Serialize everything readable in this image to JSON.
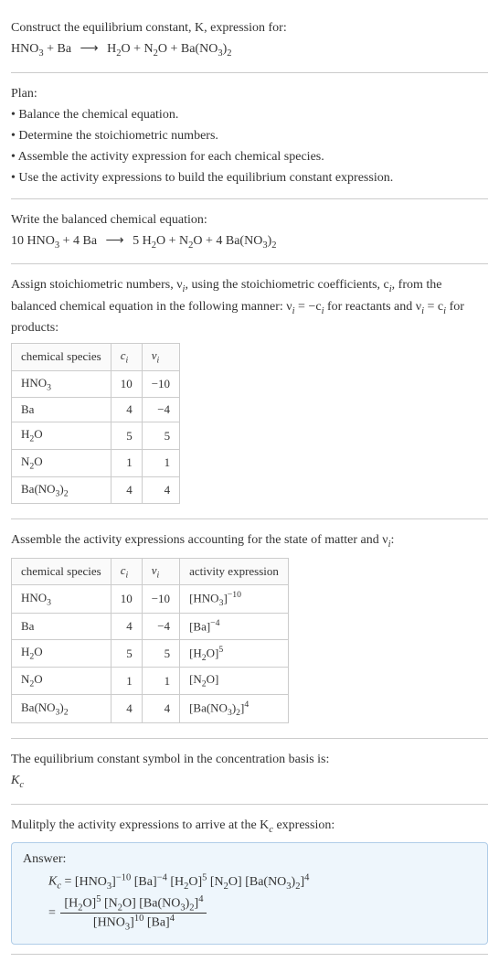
{
  "header": {
    "line1": "Construct the equilibrium constant, K, expression for:",
    "eq_lhs": "HNO₃ + Ba",
    "eq_rhs": "H₂O + N₂O + Ba(NO₃)₂"
  },
  "plan": {
    "title": "Plan:",
    "items": [
      "• Balance the chemical equation.",
      "• Determine the stoichiometric numbers.",
      "• Assemble the activity expression for each chemical species.",
      "• Use the activity expressions to build the equilibrium constant expression."
    ]
  },
  "balanced": {
    "title": "Write the balanced chemical equation:",
    "eq_lhs": "10 HNO₃ + 4 Ba",
    "eq_rhs": "5 H₂O + N₂O + 4 Ba(NO₃)₂"
  },
  "stoich": {
    "intro_a": "Assign stoichiometric numbers, ν",
    "intro_b": ", using the stoichiometric coefficients, c",
    "intro_c": ", from the balanced chemical equation in the following manner: ν",
    "intro_d": " = −c",
    "intro_e": " for reactants and ν",
    "intro_f": " = c",
    "intro_g": " for products:",
    "headers": [
      "chemical species",
      "cᵢ",
      "νᵢ"
    ],
    "rows": [
      [
        "HNO₃",
        "10",
        "−10"
      ],
      [
        "Ba",
        "4",
        "−4"
      ],
      [
        "H₂O",
        "5",
        "5"
      ],
      [
        "N₂O",
        "1",
        "1"
      ],
      [
        "Ba(NO₃)₂",
        "4",
        "4"
      ]
    ]
  },
  "activity": {
    "title_a": "Assemble the activity expressions accounting for the state of matter and ν",
    "title_b": ":",
    "headers": [
      "chemical species",
      "cᵢ",
      "νᵢ",
      "activity expression"
    ],
    "rows": [
      {
        "sp": "HNO₃",
        "c": "10",
        "v": "−10",
        "base": "[HNO₃]",
        "exp": "−10"
      },
      {
        "sp": "Ba",
        "c": "4",
        "v": "−4",
        "base": "[Ba]",
        "exp": "−4"
      },
      {
        "sp": "H₂O",
        "c": "5",
        "v": "5",
        "base": "[H₂O]",
        "exp": "5"
      },
      {
        "sp": "N₂O",
        "c": "1",
        "v": "1",
        "base": "[N₂O]",
        "exp": ""
      },
      {
        "sp": "Ba(NO₃)₂",
        "c": "4",
        "v": "4",
        "base": "[Ba(NO₃)₂]",
        "exp": "4"
      }
    ]
  },
  "symbol": {
    "line1": "The equilibrium constant symbol in the concentration basis is:",
    "line2_a": "K",
    "line2_b": "c"
  },
  "multiply": {
    "line_a": "Mulitply the activity expressions to arrive at the K",
    "line_b": " expression:"
  },
  "answer": {
    "label": "Answer:",
    "kc_a": "K",
    "kc_b": "c",
    "flat": [
      {
        "b": "[HNO₃]",
        "e": "−10"
      },
      {
        "b": " [Ba]",
        "e": "−4"
      },
      {
        "b": " [H₂O]",
        "e": "5"
      },
      {
        "b": " [N₂O]",
        "e": ""
      },
      {
        "b": " [Ba(NO₃)₂]",
        "e": "4"
      }
    ],
    "num": [
      {
        "b": "[H₂O]",
        "e": "5"
      },
      {
        "b": " [N₂O]",
        "e": ""
      },
      {
        "b": " [Ba(NO₃)₂]",
        "e": "4"
      }
    ],
    "den": [
      {
        "b": "[HNO₃]",
        "e": "10"
      },
      {
        "b": " [Ba]",
        "e": "4"
      }
    ]
  },
  "glyphs": {
    "arrow": "⟶"
  }
}
